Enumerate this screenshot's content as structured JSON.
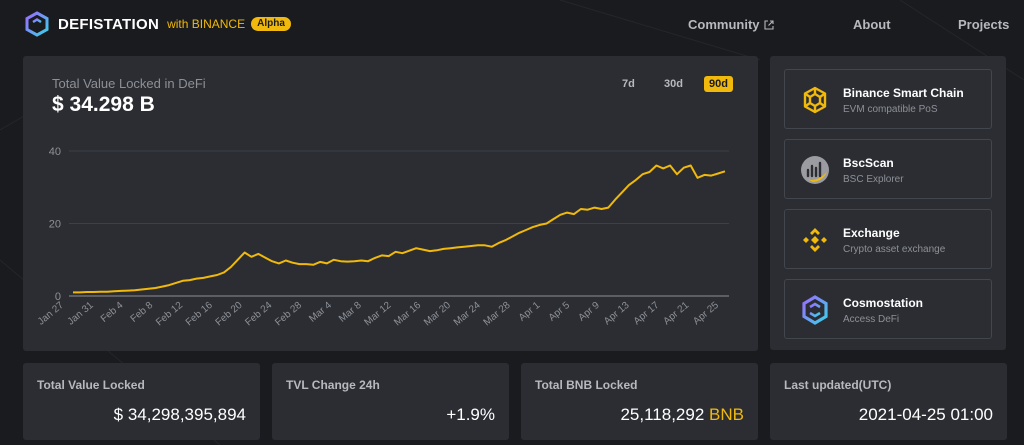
{
  "header": {
    "brand": "DEFISTATION",
    "with": "with BINANCE",
    "badge": "Alpha",
    "nav": {
      "community": "Community",
      "about": "About",
      "projects": "Projects"
    }
  },
  "colors": {
    "accent": "#f0b90b",
    "card": "#2b2d33",
    "background": "#1a1b1f"
  },
  "tvl_chart": {
    "title": "Total Value Locked in DeFi",
    "value": "$ 34.298 B",
    "ranges": [
      "7d",
      "30d",
      "90d"
    ],
    "selected_range": "90d"
  },
  "chart_data": {
    "type": "line",
    "ylim": [
      0,
      40
    ],
    "yticks": [
      "0",
      "20",
      "40"
    ],
    "xticks": [
      "Jan 27",
      "Jan 31",
      "Feb 4",
      "Feb 8",
      "Feb 12",
      "Feb 16",
      "Feb 20",
      "Feb 24",
      "Feb 28",
      "Mar 4",
      "Mar 8",
      "Mar 12",
      "Mar 16",
      "Mar 20",
      "Mar 24",
      "Mar 28",
      "Apr 1",
      "Apr 5",
      "Apr 9",
      "Apr 13",
      "Apr 17",
      "Apr 21",
      "Apr 25"
    ],
    "series": [
      {
        "values": [
          1.0,
          1.0,
          1.1,
          1.1,
          1.2,
          1.2,
          1.3,
          1.4,
          1.5,
          1.6,
          1.8,
          2.0,
          2.2,
          2.6,
          3.0,
          3.6,
          4.2,
          4.4,
          4.8,
          5.0,
          5.4,
          5.8,
          6.5,
          8.0,
          10.0,
          12.0,
          10.8,
          11.6,
          10.6,
          9.6,
          9.0,
          9.8,
          9.2,
          8.8,
          8.8,
          8.6,
          9.4,
          9.0,
          10.0,
          9.6,
          9.5,
          9.6,
          9.8,
          9.6,
          10.5,
          11.2,
          11.0,
          12.2,
          11.8,
          12.5,
          13.2,
          12.8,
          12.4,
          12.6,
          13.0,
          13.2,
          13.4,
          13.6,
          13.8,
          14.0,
          14.0,
          13.6,
          14.6,
          15.4,
          16.4,
          17.4,
          18.2,
          19.0,
          19.6,
          20.0,
          21.2,
          22.4,
          23.0,
          22.6,
          24.0,
          23.8,
          24.4,
          24.0,
          24.4,
          26.6,
          28.6,
          30.6,
          32.0,
          33.6,
          34.2,
          36.0,
          35.2,
          36.0,
          33.6,
          35.4,
          36.0,
          32.6,
          33.4,
          33.2,
          33.8,
          34.4
        ]
      }
    ]
  },
  "links": [
    {
      "title": "Binance Smart Chain",
      "subtitle": "EVM compatible PoS",
      "icon": "bsc-icon"
    },
    {
      "title": "BscScan",
      "subtitle": "BSC Explorer",
      "icon": "bscscan-icon"
    },
    {
      "title": "Exchange",
      "subtitle": "Crypto asset exchange",
      "icon": "binance-exchange-icon"
    },
    {
      "title": "Cosmostation",
      "subtitle": "Access DeFi",
      "icon": "cosmostation-icon"
    }
  ],
  "stats": {
    "tvl": {
      "label": "Total Value Locked",
      "value": "$ 34,298,395,894"
    },
    "change": {
      "label": "TVL Change 24h",
      "value": "+1.9%"
    },
    "bnb": {
      "label": "Total BNB Locked",
      "value": "25,118,292",
      "unit": "BNB"
    },
    "updated": {
      "label": "Last updated(UTC)",
      "value": "2021-04-25 01:00"
    }
  }
}
